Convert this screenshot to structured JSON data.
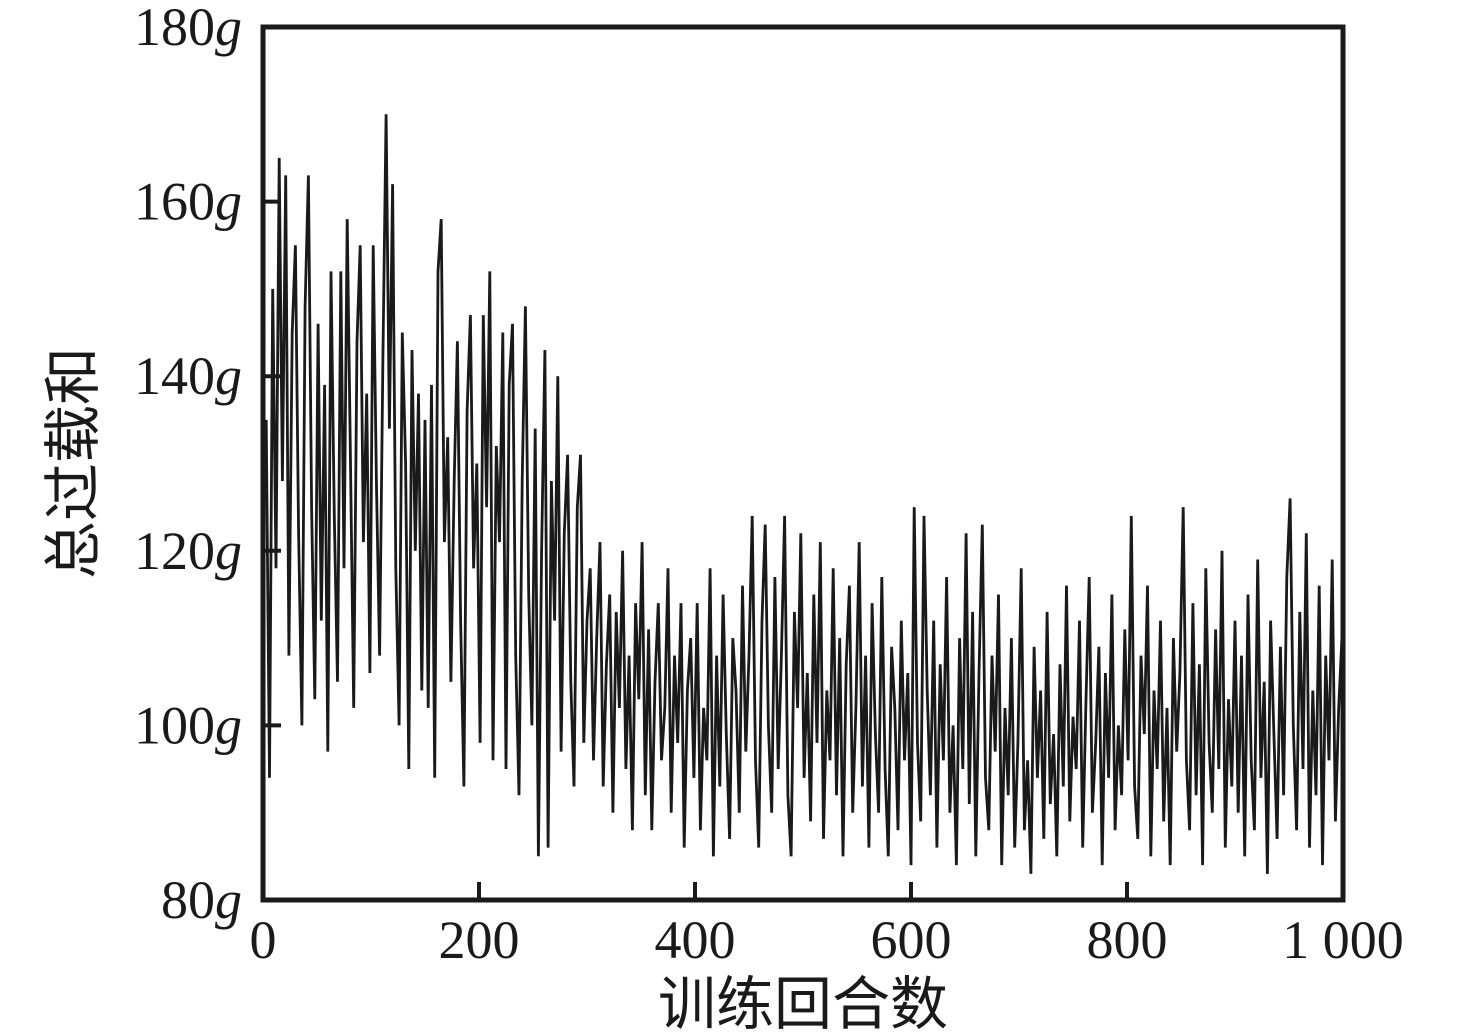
{
  "figure": {
    "background": "#ffffff",
    "axis_color": "#1a1a1a",
    "text_color": "#1a1a1a"
  },
  "chart_data": {
    "type": "line",
    "title": "",
    "xlabel": "训练回合数",
    "ylabel": "总过载和",
    "xlim": [
      0,
      1000
    ],
    "ylim": [
      80,
      180
    ],
    "x_ticks": [
      0,
      200,
      400,
      600,
      800,
      1000
    ],
    "x_tick_labels": [
      "0",
      "200",
      "400",
      "600",
      "800",
      "1 000"
    ],
    "y_ticks": [
      80,
      100,
      120,
      140,
      160,
      180
    ],
    "y_tick_labels": [
      "80",
      "100",
      "120",
      "140",
      "160",
      "180"
    ],
    "y_tick_unit": "g",
    "grid": false,
    "legend_position": "none",
    "line_color": "#1a1a1a",
    "series": [
      {
        "name": "总过载和",
        "x_start": 0,
        "x_step": 3,
        "values": [
          122,
          135,
          94,
          150,
          118,
          165,
          128,
          163,
          108,
          145,
          155,
          122,
          100,
          148,
          163,
          125,
          103,
          146,
          112,
          139,
          97,
          152,
          124,
          105,
          152,
          118,
          158,
          130,
          102,
          144,
          155,
          121,
          138,
          106,
          155,
          128,
          108,
          142,
          170,
          134,
          162,
          118,
          100,
          145,
          130,
          95,
          143,
          120,
          138,
          104,
          135,
          102,
          139,
          94,
          152,
          158,
          121,
          133,
          105,
          128,
          144,
          112,
          93,
          136,
          147,
          118,
          130,
          98,
          147,
          125,
          152,
          96,
          132,
          121,
          145,
          95,
          139,
          146,
          108,
          92,
          128,
          148,
          115,
          100,
          134,
          85,
          120,
          143,
          86,
          128,
          112,
          140,
          97,
          122,
          131,
          105,
          93,
          125,
          131,
          98,
          112,
          118,
          96,
          110,
          121,
          93,
          107,
          115,
          90,
          113,
          102,
          120,
          95,
          108,
          88,
          114,
          103,
          121,
          92,
          111,
          88,
          105,
          114,
          96,
          102,
          118,
          90,
          108,
          98,
          114,
          86,
          104,
          110,
          94,
          114,
          88,
          102,
          96,
          118,
          85,
          108,
          93,
          115,
          99,
          87,
          110,
          104,
          90,
          116,
          97,
          108,
          124,
          96,
          86,
          112,
          123,
          100,
          90,
          117,
          95,
          108,
          124,
          92,
          85,
          113,
          102,
          122,
          94,
          106,
          89,
          115,
          98,
          121,
          87,
          104,
          96,
          118,
          92,
          110,
          85,
          107,
          116,
          90,
          102,
          121,
          93,
          108,
          86,
          114,
          99,
          90,
          117,
          95,
          85,
          109,
          102,
          88,
          112,
          96,
          106,
          84,
          125,
          98,
          89,
          124,
          104,
          92,
          112,
          86,
          107,
          96,
          117,
          90,
          100,
          84,
          110,
          95,
          122,
          91,
          113,
          85,
          106,
          123,
          94,
          88,
          108,
          97,
          115,
          84,
          102,
          92,
          110,
          86,
          98,
          118,
          88,
          96,
          83,
          109,
          94,
          104,
          87,
          113,
          91,
          99,
          85,
          107,
          93,
          116,
          89,
          101,
          95,
          112,
          86,
          103,
          117,
          90,
          98,
          109,
          84,
          106,
          94,
          115,
          88,
          100,
          92,
          111,
          96,
          124,
          93,
          87,
          108,
          99,
          116,
          85,
          104,
          95,
          112,
          89,
          102,
          84,
          110,
          97,
          106,
          125,
          96,
          88,
          114,
          92,
          107,
          84,
          118,
          98,
          90,
          111,
          95,
          120,
          86,
          103,
          93,
          112,
          90,
          108,
          85,
          115,
          96,
          88,
          119,
          94,
          105,
          83,
          112,
          99,
          87,
          109,
          92,
          117,
          126,
          100,
          88,
          113,
          95,
          122,
          86,
          104,
          92,
          116,
          84,
          108,
          96,
          119,
          89,
          102,
          110
        ]
      }
    ]
  }
}
